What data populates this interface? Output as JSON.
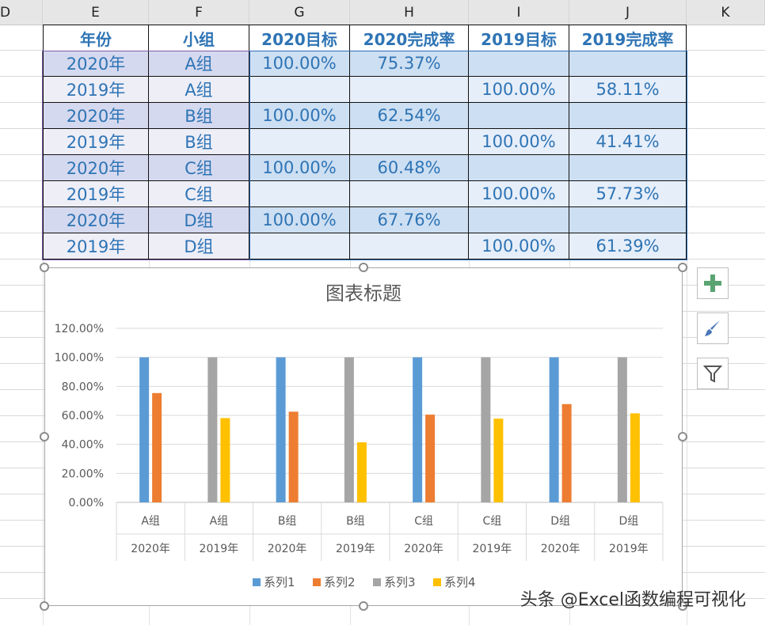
{
  "sheet": {
    "columns": [
      "D",
      "E",
      "F",
      "G",
      "H",
      "I",
      "J",
      "K"
    ],
    "headers": [
      "年份",
      "小组",
      "2020目标",
      "2020完成率",
      "2019目标",
      "2019完成率"
    ],
    "rows": [
      [
        "2020年",
        "A组",
        "100.00%",
        "75.37%",
        "",
        ""
      ],
      [
        "2019年",
        "A组",
        "",
        "",
        "100.00%",
        "58.11%"
      ],
      [
        "2020年",
        "B组",
        "100.00%",
        "62.54%",
        "",
        ""
      ],
      [
        "2019年",
        "B组",
        "",
        "",
        "100.00%",
        "41.41%"
      ],
      [
        "2020年",
        "C组",
        "100.00%",
        "60.48%",
        "",
        ""
      ],
      [
        "2019年",
        "C组",
        "",
        "",
        "100.00%",
        "57.73%"
      ],
      [
        "2020年",
        "D组",
        "100.00%",
        "67.76%",
        "",
        ""
      ],
      [
        "2019年",
        "D组",
        "",
        "",
        "100.00%",
        "61.39%"
      ]
    ]
  },
  "chart_data": {
    "type": "bar",
    "title": "图表标题",
    "categories": [
      "A组",
      "A组",
      "B组",
      "B组",
      "C组",
      "C组",
      "D组",
      "D组"
    ],
    "category_groups": [
      "2020年",
      "2019年",
      "2020年",
      "2019年",
      "2020年",
      "2019年",
      "2020年",
      "2019年"
    ],
    "series": [
      {
        "name": "系列1",
        "color": "#5b9bd5",
        "values": [
          100,
          null,
          100,
          null,
          100,
          null,
          100,
          null
        ]
      },
      {
        "name": "系列2",
        "color": "#ed7d31",
        "values": [
          75.37,
          null,
          62.54,
          null,
          60.48,
          null,
          67.76,
          null
        ]
      },
      {
        "name": "系列3",
        "color": "#a5a5a5",
        "values": [
          null,
          100,
          null,
          100,
          null,
          100,
          null,
          100
        ]
      },
      {
        "name": "系列4",
        "color": "#ffc000",
        "values": [
          null,
          58.11,
          null,
          41.41,
          null,
          57.73,
          null,
          61.39
        ]
      }
    ],
    "y_ticks": [
      "0.00%",
      "20.00%",
      "40.00%",
      "60.00%",
      "80.00%",
      "100.00%",
      "120.00%"
    ],
    "ylim": [
      0,
      120
    ],
    "grid": true,
    "legend_position": "bottom"
  },
  "side_buttons": [
    {
      "name": "chart-elements-button",
      "icon": "plus-icon"
    },
    {
      "name": "chart-styles-button",
      "icon": "brush-icon"
    },
    {
      "name": "chart-filters-button",
      "icon": "filter-icon"
    }
  ],
  "watermark": "头条 @Excel函数编程可视化"
}
